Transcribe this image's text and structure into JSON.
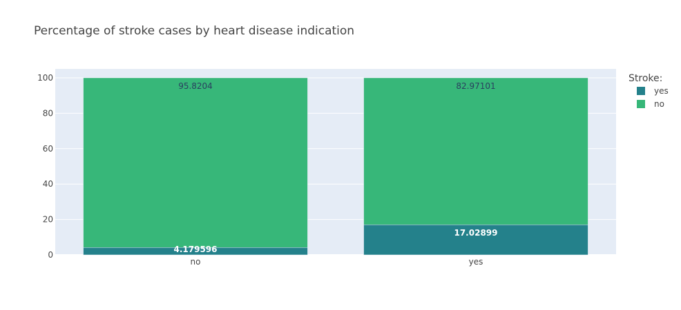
{
  "chart_data": {
    "type": "bar",
    "barmode": "stack",
    "title": "Percentage of stroke cases by heart disease indication",
    "xlabel": "",
    "ylabel": "",
    "categories": [
      "no",
      "yes"
    ],
    "ylim": [
      0,
      100
    ],
    "yticks": [
      "0",
      "20",
      "40",
      "60",
      "80",
      "100"
    ],
    "grid": true,
    "legend": {
      "title": "Stroke:",
      "placement": "top-right"
    },
    "series": [
      {
        "name": "yes",
        "values": [
          4.1796,
          17.02899
        ],
        "labels": [
          "4.179596",
          "17.02899"
        ],
        "color": "#24818b",
        "label_color": "#ffffff"
      },
      {
        "name": "no",
        "values": [
          95.8204,
          82.97101
        ],
        "labels": [
          "95.8204",
          "82.97101"
        ],
        "color": "#37b779",
        "label_color": "#2a3f5f"
      }
    ],
    "plot_bg": "#e5ecf6",
    "grid_color": "#ffffff"
  }
}
